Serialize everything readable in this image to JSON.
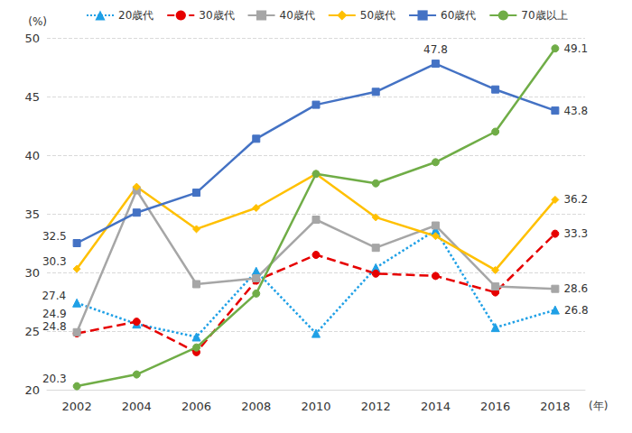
{
  "chart_data": {
    "type": "line",
    "y_label": "(%)",
    "x_label": "(年)",
    "categories": [
      "2002",
      "2004",
      "2006",
      "2008",
      "2010",
      "2012",
      "2014",
      "2016",
      "2018"
    ],
    "series": [
      {
        "name": "20歳代",
        "color": "#1fa0e6",
        "marker": "triangle",
        "line_style": "dotted",
        "values": [
          27.4,
          25.6,
          24.5,
          30.1,
          24.8,
          30.4,
          33.6,
          25.3,
          26.8
        ]
      },
      {
        "name": "30歳代",
        "color": "#e60000",
        "marker": "circle",
        "line_style": "dashed",
        "values": [
          24.8,
          25.8,
          23.2,
          29.3,
          31.5,
          29.9,
          29.7,
          28.3,
          33.3
        ]
      },
      {
        "name": "40歳代",
        "color": "#a6a6a6",
        "marker": "square",
        "line_style": "solid",
        "values": [
          24.9,
          37.0,
          29.0,
          29.5,
          34.5,
          32.1,
          34.0,
          28.8,
          28.6
        ]
      },
      {
        "name": "50歳代",
        "color": "#ffc000",
        "marker": "diamond",
        "line_style": "solid",
        "values": [
          30.3,
          37.3,
          33.7,
          35.5,
          38.4,
          34.7,
          33.1,
          30.2,
          36.2
        ]
      },
      {
        "name": "60歳代",
        "color": "#4472c4",
        "marker": "square",
        "line_style": "solid",
        "values": [
          32.5,
          35.1,
          36.8,
          41.4,
          44.3,
          45.4,
          47.8,
          45.6,
          43.8
        ]
      },
      {
        "name": "70歳以上",
        "color": "#70ad47",
        "marker": "circle",
        "line_style": "solid",
        "values": [
          20.3,
          21.3,
          23.6,
          28.2,
          38.4,
          37.6,
          39.4,
          42.0,
          49.1
        ]
      }
    ],
    "annotations": [
      {
        "series": "20歳代",
        "category": "2002",
        "text": "27.4"
      },
      {
        "series": "20歳代",
        "category": "2018",
        "text": "26.8"
      },
      {
        "series": "30歳代",
        "category": "2002",
        "text": "24.8"
      },
      {
        "series": "30歳代",
        "category": "2018",
        "text": "33.3"
      },
      {
        "series": "40歳代",
        "category": "2002",
        "text": "24.9"
      },
      {
        "series": "40歳代",
        "category": "2018",
        "text": "28.6"
      },
      {
        "series": "50歳代",
        "category": "2002",
        "text": "30.3"
      },
      {
        "series": "50歳代",
        "category": "2018",
        "text": "36.2"
      },
      {
        "series": "60歳代",
        "category": "2002",
        "text": "32.5"
      },
      {
        "series": "60歳代",
        "category": "2014",
        "text": "47.8"
      },
      {
        "series": "60歳代",
        "category": "2018",
        "text": "43.8"
      },
      {
        "series": "70歳以上",
        "category": "2002",
        "text": "20.3"
      },
      {
        "series": "70歳以上",
        "category": "2018",
        "text": "49.1"
      }
    ],
    "ylim": [
      20,
      50
    ],
    "yticks": [
      20,
      25,
      30,
      35,
      40,
      45,
      50
    ],
    "grid": true,
    "legend": "top"
  }
}
